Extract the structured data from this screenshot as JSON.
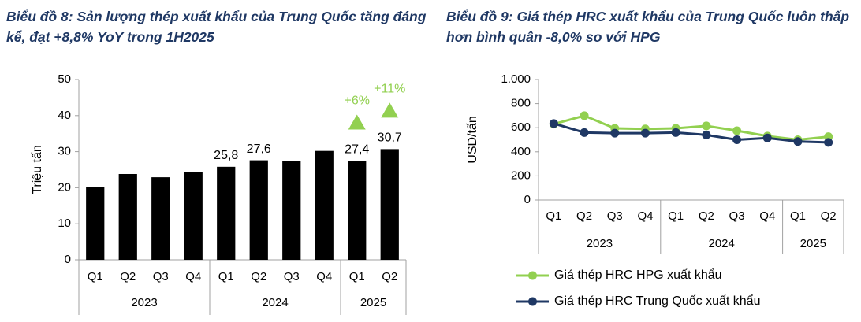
{
  "chart_data": [
    {
      "type": "bar",
      "title": "Biểu đồ 8: Sản lượng thép xuất khẩu của Trung Quốc tăng đáng kể, đạt +8,8% YoY trong 1H2025",
      "y_label": "Triệu tấn",
      "categories": [
        "Q1",
        "Q2",
        "Q3",
        "Q4",
        "Q1",
        "Q2",
        "Q3",
        "Q4",
        "Q1",
        "Q2"
      ],
      "groups": [
        {
          "label": "2023",
          "span": 4
        },
        {
          "label": "2024",
          "span": 4
        },
        {
          "label": "2025",
          "span": 2
        }
      ],
      "values": [
        20.1,
        23.8,
        22.9,
        24.4,
        25.8,
        27.6,
        27.3,
        30.2,
        27.4,
        30.7
      ],
      "value_labels": [
        null,
        null,
        null,
        null,
        "25,8",
        "27,6",
        null,
        null,
        "27,4",
        "30,7"
      ],
      "color": "#000000",
      "annotations": [
        "+6%",
        "+11%"
      ],
      "annotation_color": "#92d050",
      "ylim": [
        0,
        50
      ],
      "yticks": [
        0,
        10,
        20,
        30,
        40,
        50
      ],
      "grid": false
    },
    {
      "type": "line",
      "title": "Biểu đồ 9: Giá thép HRC xuất khẩu của Trung Quốc luôn thấp hơn bình quân -8,0% so với HPG",
      "y_label": "USD/tấn",
      "categories": [
        "Q1",
        "Q2",
        "Q3",
        "Q4",
        "Q1",
        "Q2",
        "Q3",
        "Q4",
        "Q1",
        "Q2"
      ],
      "groups": [
        {
          "label": "2023",
          "span": 4
        },
        {
          "label": "2024",
          "span": 4
        },
        {
          "label": "2025",
          "span": 2
        }
      ],
      "series": [
        {
          "name": "Giá thép HRC HPG xuất khẩu",
          "color": "#92d050",
          "values": [
            630,
            700,
            595,
            590,
            595,
            615,
            575,
            530,
            500,
            525
          ]
        },
        {
          "name": "Giá thép HRC Trung Quốc xuất khẩu",
          "color": "#1f3864",
          "values": [
            635,
            560,
            555,
            555,
            560,
            540,
            500,
            515,
            485,
            478
          ]
        }
      ],
      "ylim": [
        0,
        1000
      ],
      "yticks": [
        0,
        200,
        400,
        600,
        800,
        {
          "value": 1000,
          "label": "1.000"
        }
      ],
      "grid": false
    }
  ]
}
